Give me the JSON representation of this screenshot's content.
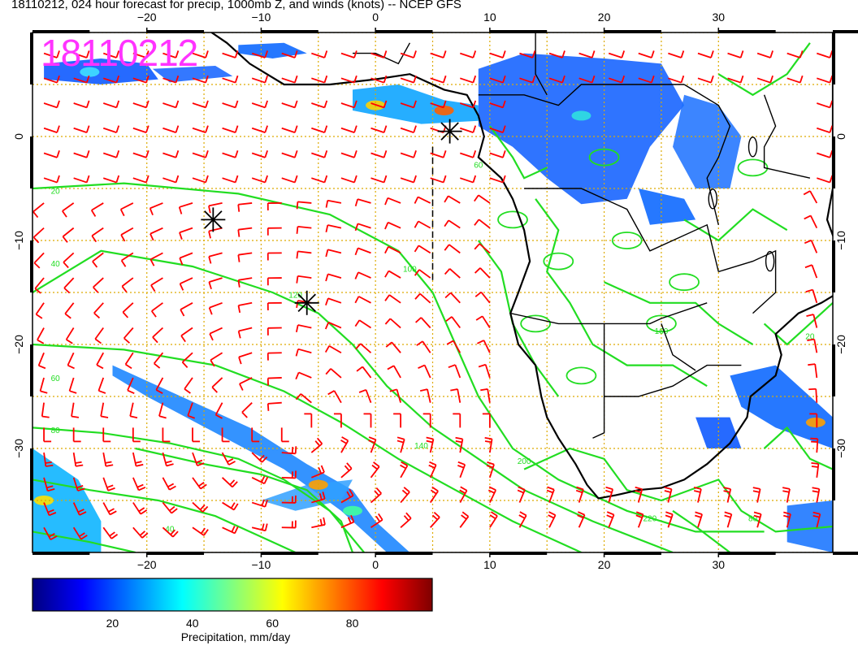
{
  "title": "18110212, 024 hour forecast for precip, 1000mb Z, and winds (knots) -- NCEP GFS",
  "timestamp_stamp": "18110212",
  "map": {
    "lon_range": [
      -30,
      40
    ],
    "lat_range": [
      -40,
      10
    ],
    "lon_ticks": [
      -20,
      -10,
      0,
      10,
      20,
      30
    ],
    "lat_ticks": [
      0,
      -10,
      -20,
      -30
    ],
    "lon_tick_labels": [
      "−20",
      "−10",
      "0",
      "10",
      "20",
      "30"
    ],
    "lat_tick_labels": [
      "0",
      "−10",
      "−20",
      "−30"
    ],
    "colors": {
      "barbs": "#ff0000",
      "contours": "#22dd22",
      "coast": "#000000",
      "grid": "#ddaa00",
      "stamp": "#ff33ff"
    },
    "contour_labels": [
      "20",
      "40",
      "60",
      "80",
      "100",
      "120",
      "140",
      "160",
      "200",
      "220"
    ],
    "markers": [
      {
        "name": "asterisk-marker-1",
        "lon": -14.2,
        "lat": -8.0
      },
      {
        "name": "asterisk-marker-2",
        "lon": -6.0,
        "lat": -16.0
      },
      {
        "name": "asterisk-marker-3",
        "lon": 6.5,
        "lat": 0.5
      }
    ]
  },
  "colorbar": {
    "ticks": [
      "20",
      "40",
      "60",
      "80"
    ],
    "tick_values": [
      20,
      40,
      60,
      80
    ],
    "range": [
      0,
      100
    ],
    "label": "Precipitation, mm/day",
    "colors": [
      "#00007f",
      "#0000ff",
      "#0080ff",
      "#00ffff",
      "#80ff80",
      "#ffff00",
      "#ff8000",
      "#ff0000",
      "#7f0000"
    ]
  }
}
